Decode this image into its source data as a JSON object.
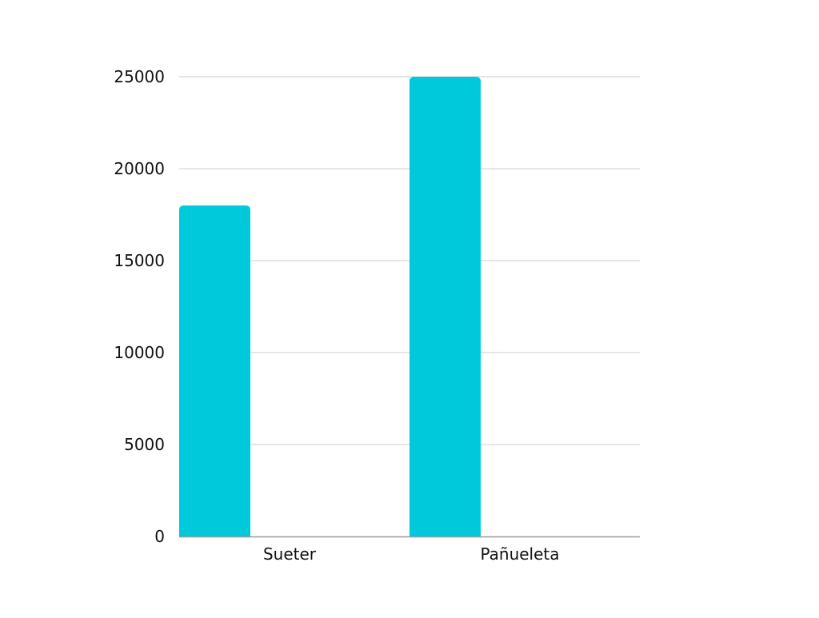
{
  "chart_data": {
    "type": "bar",
    "categories": [
      "Sueter",
      "Pañueleta"
    ],
    "values": [
      18000,
      25000
    ],
    "title": "",
    "xlabel": "",
    "ylabel": "",
    "ylim": [
      0,
      25000
    ],
    "yticks": [
      0,
      5000,
      10000,
      15000,
      20000,
      25000
    ],
    "ytick_labels": [
      "0",
      "5000",
      "10000",
      "15000",
      "20000",
      "25000"
    ],
    "grid": true,
    "legend": "none",
    "colors": {
      "bar": "#00C9DB",
      "grid": "#cccccc",
      "axis": "#999999",
      "text": "#111111"
    }
  }
}
